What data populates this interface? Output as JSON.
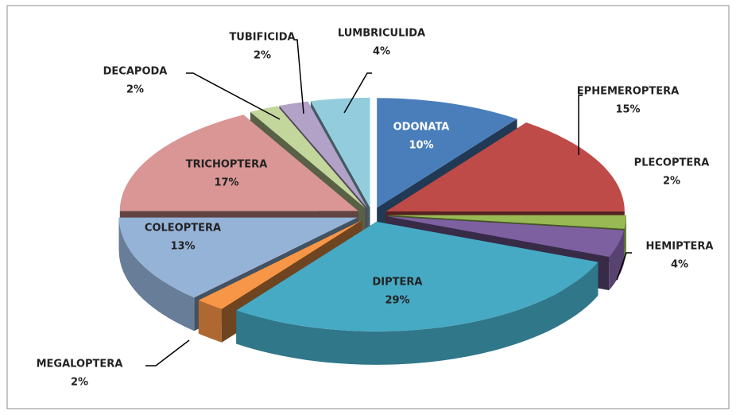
{
  "chart_data": {
    "type": "pie3d",
    "categories": [
      "ODONATA",
      "EPHEMEROPTERA",
      "PLECOPTERA",
      "HEMIPTERA",
      "DIPTERA",
      "MEGALOPTERA",
      "COLEOPTERA",
      "TRICHOPTERA",
      "DECAPODA",
      "TUBIFICIDA",
      "LUMBRICULIDA"
    ],
    "values": [
      10,
      15,
      2,
      4,
      29,
      2,
      13,
      17,
      2,
      2,
      4
    ],
    "value_labels": [
      "10%",
      "15%",
      "2%",
      "4%",
      "29%",
      "2%",
      "13%",
      "17%",
      "2%",
      "2%",
      "4%"
    ],
    "colors": [
      "#4a7ebb",
      "#be4b48",
      "#98b954",
      "#7d60a0",
      "#46aac5",
      "#f79646",
      "#95b3d7",
      "#d99694",
      "#c3d69b",
      "#b3a2c7",
      "#93cddd"
    ]
  }
}
